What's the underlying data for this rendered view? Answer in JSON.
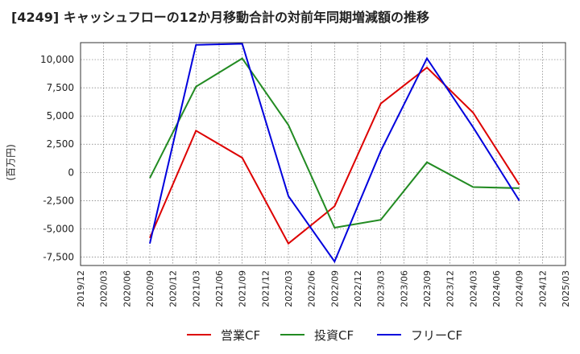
{
  "chart_data": {
    "type": "line",
    "title": "[4249]  キャッシュフローの12か月移動合計の対前年同期増減額の推移",
    "xlabel": "",
    "ylabel": "(百万円)",
    "ylim": [
      -8250,
      11500
    ],
    "yticks": [
      10000,
      7500,
      5000,
      2500,
      0,
      -2500,
      -5000,
      -7500
    ],
    "ytick_labels": [
      "10,000",
      "7,500",
      "5,000",
      "2,500",
      "0",
      "-2,500",
      "-5,000",
      "-7,500"
    ],
    "categories": [
      "2019/12",
      "2020/03",
      "2020/06",
      "2020/09",
      "2020/12",
      "2021/03",
      "2021/06",
      "2021/09",
      "2021/12",
      "2022/03",
      "2022/06",
      "2022/09",
      "2022/12",
      "2023/03",
      "2023/06",
      "2023/09",
      "2023/12",
      "2024/03",
      "2024/06",
      "2024/09",
      "2024/12",
      "2025/03"
    ],
    "grid": true,
    "legend": "bottom",
    "series": [
      {
        "name": "営業CF",
        "color": "#dd0000",
        "values": [
          null,
          null,
          null,
          -5800,
          null,
          3700,
          null,
          1300,
          null,
          -6300,
          null,
          -3000,
          null,
          6100,
          null,
          9300,
          null,
          5300,
          null,
          -1100,
          null,
          null
        ]
      },
      {
        "name": "投資CF",
        "color": "#228b22",
        "values": [
          null,
          null,
          null,
          -500,
          null,
          7600,
          null,
          10100,
          null,
          4200,
          null,
          -4900,
          null,
          -4200,
          null,
          900,
          null,
          -1300,
          null,
          -1400,
          null,
          null
        ]
      },
      {
        "name": "フリーCF",
        "color": "#0000dd",
        "values": [
          null,
          null,
          null,
          -6300,
          null,
          11300,
          null,
          11400,
          null,
          -2100,
          null,
          -7900,
          null,
          1900,
          null,
          10100,
          null,
          4000,
          null,
          -2500,
          null,
          null
        ]
      }
    ]
  }
}
